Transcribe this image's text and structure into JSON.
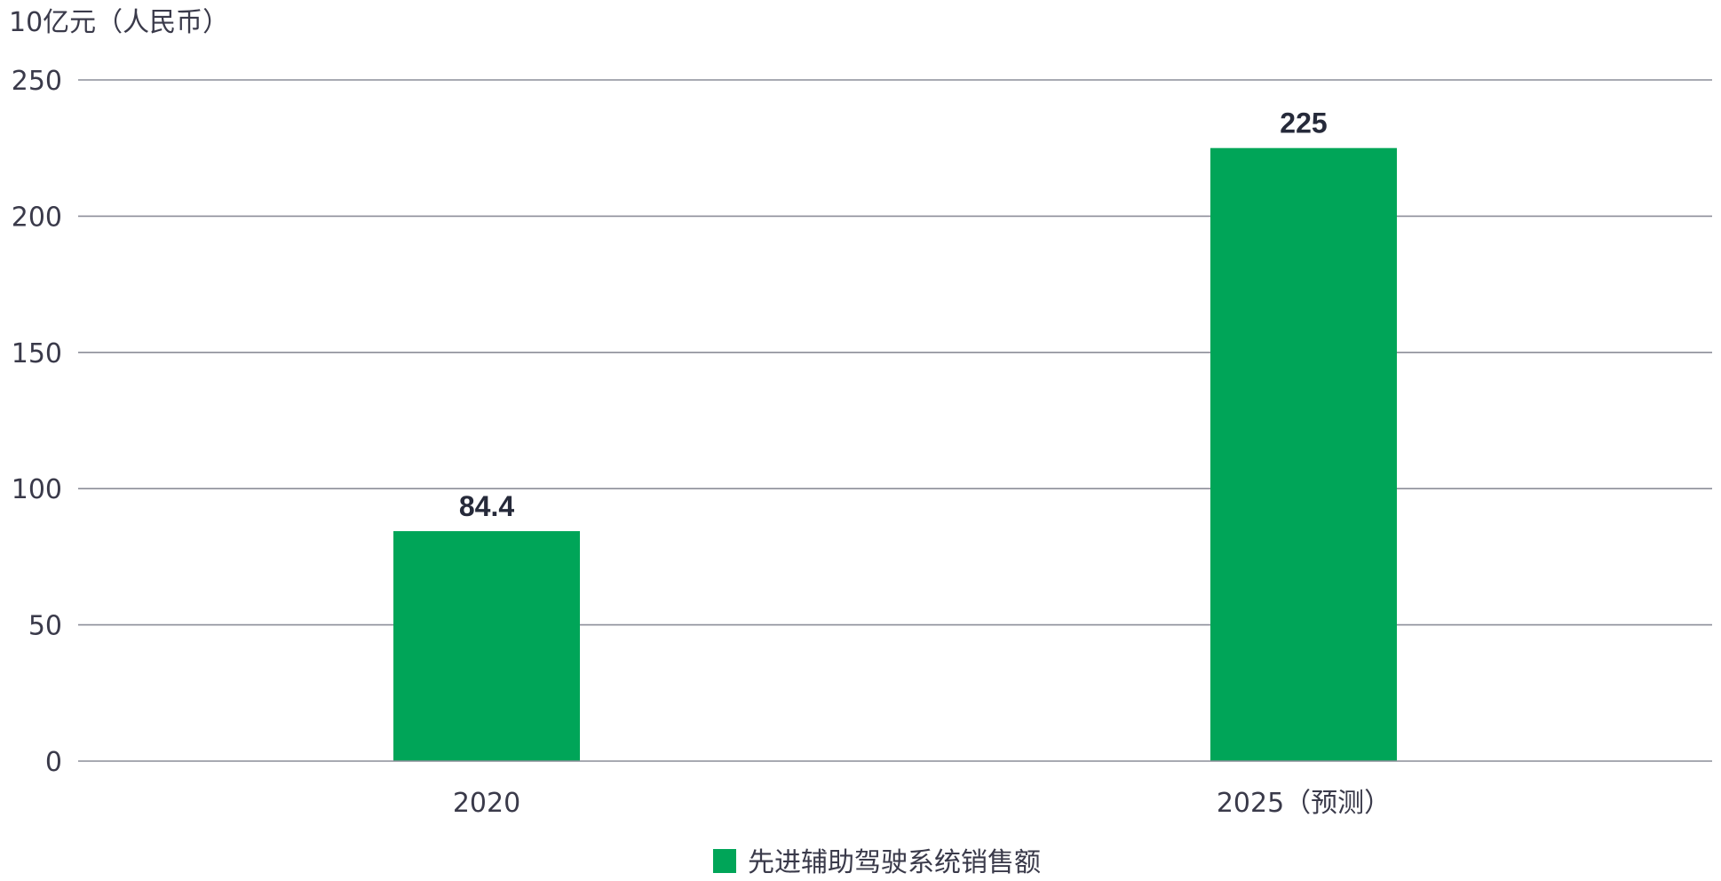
{
  "chart_data": {
    "type": "bar",
    "unit_label": "10亿元（人民币）",
    "categories": [
      "2020",
      "2025（预测）"
    ],
    "series": [
      {
        "name": "先进辅助驾驶系统销售额",
        "values": [
          84.4,
          225
        ],
        "value_labels": [
          "84.4",
          "225"
        ],
        "color": "#00a558"
      }
    ],
    "y_ticks": [
      "0",
      "50",
      "100",
      "150",
      "200",
      "250"
    ],
    "ylim": [
      0,
      250
    ],
    "grid": true,
    "legend_position": "bottom-center",
    "colors": {
      "bar": "#00a558",
      "grid": "#8c8e99",
      "text": "#3a3a4a",
      "data_label": "#262a3a"
    }
  }
}
